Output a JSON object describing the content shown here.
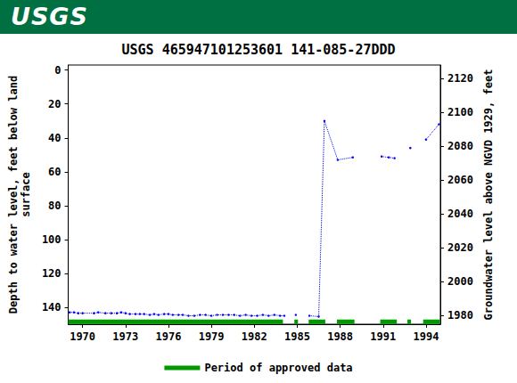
{
  "header": {
    "logo": "USGS"
  },
  "chart_data": {
    "type": "line",
    "title": "USGS 465947101253601 141-085-27DDD",
    "ylabel": "Depth to water level, feet below land\nsurface",
    "y2label": "Groundwater level above NGVD 1929, feet",
    "xlim": [
      1969,
      1995
    ],
    "xticks": [
      1970,
      1973,
      1976,
      1979,
      1982,
      1985,
      1988,
      1991,
      1994
    ],
    "ylim": [
      -3,
      150
    ],
    "yticks": [
      0,
      20,
      40,
      60,
      80,
      100,
      120,
      140
    ],
    "y2lim": [
      1975,
      2128
    ],
    "y2ticks": [
      1980,
      2000,
      2020,
      2040,
      2060,
      2080,
      2100,
      2120
    ],
    "grid": false,
    "legend": "bottom",
    "series": [
      {
        "color": "#0000ff",
        "line_style": "dotted",
        "marker": "circle",
        "x": [
          1969.1,
          1969.4,
          1969.7,
          1970.0,
          1970.8,
          1971.1,
          1971.6,
          1972.0,
          1972.4,
          1972.7,
          1973.0,
          1973.3,
          1973.7,
          1974.0,
          1974.3,
          1974.7,
          1975.0,
          1975.3,
          1975.7,
          1976.0,
          1976.3,
          1976.7,
          1977.0,
          1977.4,
          1977.8,
          1978.2,
          1978.6,
          1979.0,
          1979.4,
          1979.8,
          1980.2,
          1980.6,
          1981.0,
          1981.4,
          1981.8,
          1982.2,
          1982.6,
          1983.0,
          1983.4,
          1983.8,
          1984.1,
          null,
          1984.9,
          null,
          1985.85,
          1986.5,
          1986.9,
          1987.83,
          1988.88,
          null,
          1990.9,
          1991.4,
          1991.8,
          null,
          1992.9,
          null,
          1994.0,
          1994.9
        ],
        "values": [
          143,
          143,
          143.5,
          143.5,
          143.5,
          143,
          143.5,
          143.5,
          143.5,
          143,
          143.5,
          144,
          144,
          144,
          144,
          144.5,
          144,
          144.5,
          144,
          144,
          144.5,
          144.5,
          144.5,
          145,
          145,
          144.5,
          144.5,
          145,
          144.5,
          144.5,
          144.5,
          144.5,
          145,
          144.5,
          145,
          145,
          144.5,
          145,
          144.5,
          145,
          145,
          null,
          144.5,
          null,
          145,
          145.5,
          30,
          53,
          51.5,
          null,
          51,
          51.5,
          52,
          null,
          46,
          null,
          41,
          32
        ]
      },
      {
        "name": "Period of approved data",
        "color": "#009900",
        "line_style": "solid",
        "marker": "none",
        "x": [
          1969.0,
          1984.0,
          null,
          1984.8,
          1985.05,
          null,
          1985.8,
          1986.96,
          null,
          1987.77,
          1989.0,
          null,
          1990.8,
          1991.96,
          null,
          1992.7,
          1992.95,
          null,
          1993.8,
          1994.98
        ],
        "values": [
          148.5,
          148.5,
          null,
          148.5,
          148.5,
          null,
          148.5,
          148.5,
          null,
          148.5,
          148.5,
          null,
          148.5,
          148.5,
          null,
          148.5,
          148.5,
          null,
          148.5,
          148.5
        ]
      }
    ]
  }
}
